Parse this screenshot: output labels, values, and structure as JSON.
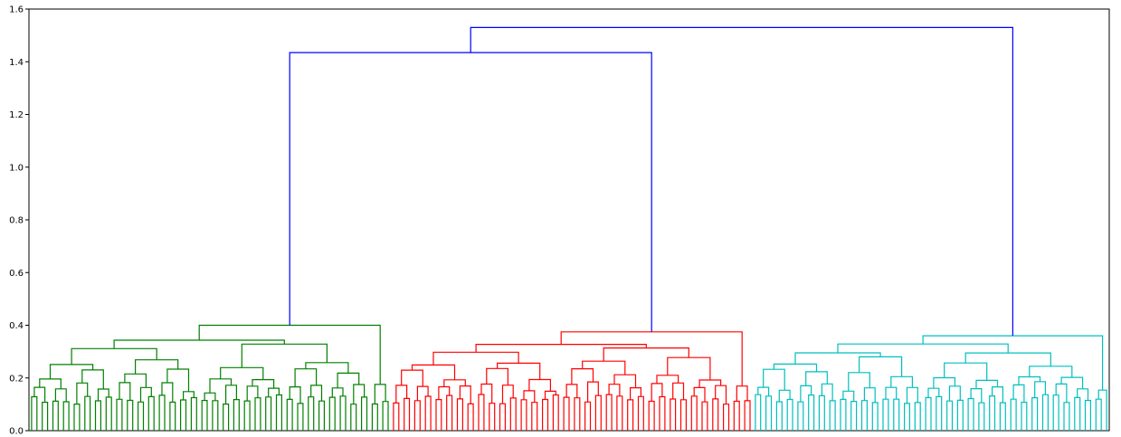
{
  "chart_data": {
    "type": "dendrogram",
    "title": "",
    "xlabel": "",
    "ylabel": "",
    "ylim": [
      0,
      1.6
    ],
    "yticks": [
      "0.0",
      "0.2",
      "0.4",
      "0.6",
      "0.8",
      "1.0",
      "1.2",
      "1.4",
      "1.6"
    ],
    "grid": false,
    "legend": "none",
    "colors": {
      "above_threshold": "#0000ff",
      "clusters": [
        "#008000",
        "#ff0000",
        "#00bfbf"
      ]
    },
    "clusters": [
      {
        "color_index": 0,
        "leaf_count": 68,
        "root_height": 0.4
      },
      {
        "color_index": 1,
        "leaf_count": 68,
        "root_height": 0.375
      },
      {
        "color_index": 2,
        "leaf_count": 67,
        "root_height": 0.36
      }
    ],
    "top_links": [
      {
        "height": 1.435,
        "joins": [
          "cluster 1",
          "cluster 2"
        ]
      },
      {
        "height": 1.53,
        "joins": [
          "merge(cluster 1, cluster 2)",
          "cluster 3"
        ]
      }
    ]
  }
}
